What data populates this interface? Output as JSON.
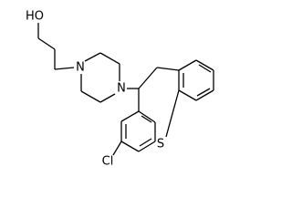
{
  "atoms": {
    "hydroxyl": "HO",
    "n1": "N",
    "n4": "N",
    "sulfur": "S",
    "chlorine": "Cl"
  }
}
